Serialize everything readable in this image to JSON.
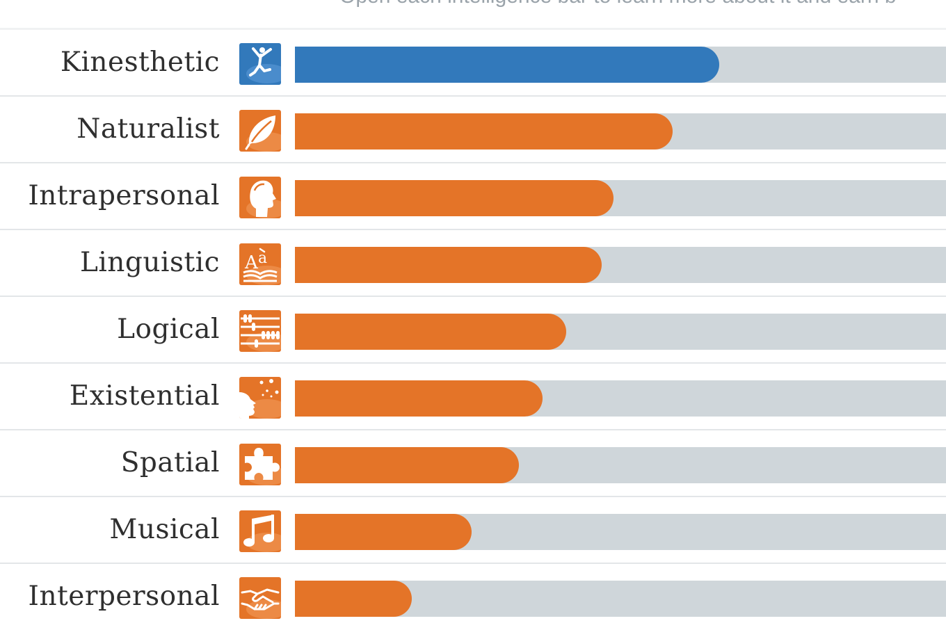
{
  "header": {
    "hint": "Open each intelligence bar to learn more about it and earn b"
  },
  "colors": {
    "primary": "#3279bb",
    "secondary": "#e47428",
    "track": "#cfd6da"
  },
  "intelligences": [
    {
      "label": "Kinesthetic",
      "icon": "kinesthetic-figure-icon",
      "score": 0.652,
      "color": "#3279bb"
    },
    {
      "label": "Naturalist",
      "icon": "leaf-icon",
      "score": 0.58,
      "color": "#e47428"
    },
    {
      "label": "Intrapersonal",
      "icon": "head-profile-icon",
      "score": 0.489,
      "color": "#e47428"
    },
    {
      "label": "Linguistic",
      "icon": "book-letters-icon",
      "score": 0.471,
      "color": "#e47428"
    },
    {
      "label": "Logical",
      "icon": "abacus-icon",
      "score": 0.417,
      "color": "#e47428"
    },
    {
      "label": "Existential",
      "icon": "stargazing-face-icon",
      "score": 0.38,
      "color": "#e47428"
    },
    {
      "label": "Spatial",
      "icon": "puzzle-piece-icon",
      "score": 0.344,
      "color": "#e47428"
    },
    {
      "label": "Musical",
      "icon": "music-note-icon",
      "score": 0.271,
      "color": "#e47428"
    },
    {
      "label": "Interpersonal",
      "icon": "handshake-icon",
      "score": 0.18,
      "color": "#e47428"
    }
  ]
}
